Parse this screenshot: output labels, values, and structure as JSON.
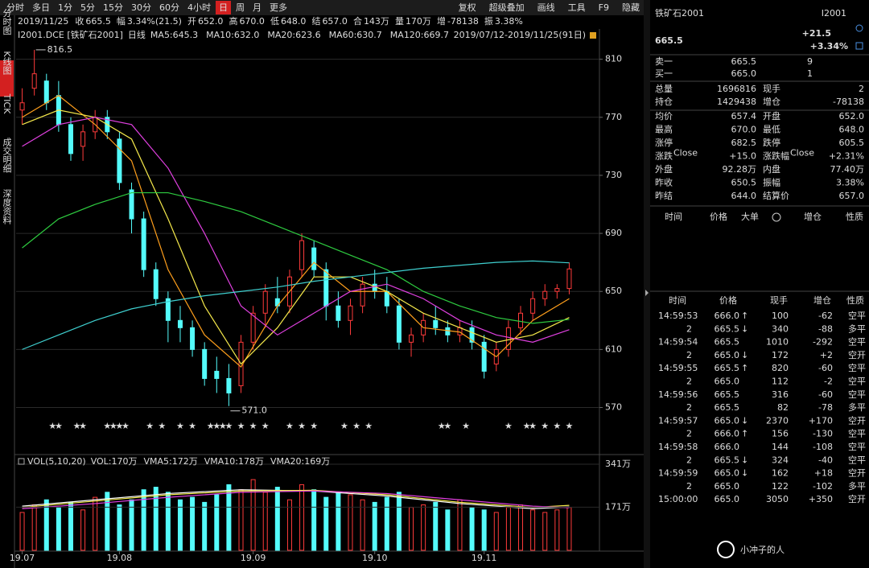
{
  "toolbar": {
    "tabs": [
      "分时",
      "多日",
      "1分",
      "5分",
      "15分",
      "30分",
      "60分",
      "4小时",
      "日",
      "周",
      "月",
      "更多"
    ],
    "active": 8,
    "right_tabs": [
      "复权",
      "超级叠加",
      "画线",
      "工具",
      "F9",
      "隐藏"
    ]
  },
  "sidebar": {
    "tabs": [
      "分时图",
      "K线图",
      "TICK",
      "成交明细",
      "深度资料"
    ],
    "active": 1
  },
  "info_bar": {
    "date": "2019/11/25",
    "items": [
      {
        "label": "收",
        "value": "665.5",
        "color": "#ff3b3b"
      },
      {
        "label": "幅",
        "value": "3.34%(21.5)",
        "color": "#ff3b3b"
      },
      {
        "label": "开",
        "value": "652.0",
        "color": "#ff3b3b"
      },
      {
        "label": "高",
        "value": "670.0",
        "color": "#ff3b3b"
      },
      {
        "label": "低",
        "value": "648.0",
        "color": "#ff3b3b"
      },
      {
        "label": "结",
        "value": "657.0",
        "color": "#ff3b3b"
      },
      {
        "label": "合",
        "value": "143万",
        "color": "#e0e0e0"
      },
      {
        "label": "量",
        "value": "170万",
        "color": "#e0e0e0"
      },
      {
        "label": "增",
        "value": "-78138",
        "color": "#2ecc40"
      },
      {
        "label": "振",
        "value": "3.38%",
        "color": "#e0e0e0"
      }
    ]
  },
  "kline_header": {
    "code": "I2001.DCE [铁矿石2001]",
    "period": "日线",
    "range": "2019/07/12-2019/11/25(91日)"
  },
  "chart_data": [
    {
      "type": "candlestick",
      "x": [
        0,
        2,
        4,
        6,
        8,
        10,
        12,
        14,
        16,
        18,
        20,
        22,
        24,
        26,
        28,
        30,
        32,
        34,
        36,
        38,
        40,
        42,
        44,
        46,
        48,
        50,
        52,
        54,
        56,
        58,
        60,
        62,
        64,
        66,
        68,
        70,
        72,
        74,
        76,
        78,
        80,
        82,
        84,
        86,
        88,
        90
      ],
      "open": [
        775,
        790,
        795,
        785,
        765,
        750,
        760,
        770,
        755,
        720,
        700,
        665,
        645,
        630,
        625,
        610,
        595,
        590,
        585,
        615,
        635,
        645,
        640,
        665,
        680,
        665,
        640,
        630,
        640,
        655,
        650,
        640,
        615,
        620,
        630,
        625,
        620,
        625,
        615,
        600,
        610,
        625,
        635,
        645,
        650,
        652
      ],
      "high": [
        790,
        816.5,
        800,
        795,
        770,
        765,
        775,
        775,
        760,
        725,
        705,
        670,
        650,
        640,
        630,
        615,
        605,
        600,
        620,
        640,
        655,
        660,
        665,
        690,
        685,
        670,
        650,
        645,
        660,
        665,
        660,
        645,
        625,
        635,
        640,
        630,
        630,
        630,
        620,
        615,
        630,
        640,
        650,
        655,
        655,
        670
      ],
      "low": [
        765,
        785,
        775,
        760,
        740,
        740,
        755,
        755,
        720,
        690,
        660,
        640,
        615,
        615,
        605,
        585,
        580,
        571,
        580,
        610,
        625,
        635,
        635,
        660,
        660,
        630,
        625,
        620,
        635,
        645,
        635,
        610,
        605,
        615,
        620,
        615,
        615,
        610,
        590,
        595,
        605,
        620,
        630,
        640,
        645,
        648
      ],
      "close": [
        780,
        800,
        780,
        765,
        745,
        760,
        770,
        760,
        725,
        700,
        665,
        645,
        630,
        625,
        610,
        590,
        590,
        580,
        615,
        635,
        650,
        640,
        660,
        685,
        665,
        640,
        630,
        640,
        655,
        650,
        640,
        615,
        620,
        630,
        625,
        620,
        625,
        615,
        595,
        610,
        625,
        635,
        645,
        650,
        652,
        665.5
      ],
      "up_color": "#ff3b3b",
      "down_color": "#54fcfc",
      "xlim": [
        -1,
        91
      ],
      "ylim": [
        547,
        822
      ],
      "yticks": [
        570,
        610,
        650,
        690,
        730,
        770,
        810
      ],
      "xticks": [
        {
          "value": 0,
          "label": "19.07"
        },
        {
          "value": 16,
          "label": "19.08"
        },
        {
          "value": 38,
          "label": "19.09"
        },
        {
          "value": 58,
          "label": "19.10"
        },
        {
          "value": 76,
          "label": "19.11"
        }
      ],
      "annotations": [
        {
          "x": 2,
          "value": 816.5,
          "label": "816.5"
        },
        {
          "x": 34,
          "value": 571,
          "label": "571.0"
        }
      ],
      "series": [
        {
          "name": "MA5:645.3",
          "color": "#ff9f1c",
          "x": [
            0,
            6,
            12,
            18,
            24,
            30,
            36,
            42,
            48,
            54,
            60,
            66,
            72,
            78,
            84,
            90
          ],
          "values": [
            770,
            785,
            765,
            740,
            665,
            620,
            598,
            640,
            670,
            650,
            650,
            625,
            622,
            605,
            630,
            645
          ]
        },
        {
          "name": "MA10:632.0",
          "color": "#f5e94b",
          "x": [
            0,
            6,
            12,
            18,
            24,
            30,
            36,
            42,
            48,
            54,
            60,
            66,
            72,
            78,
            84,
            90
          ],
          "values": [
            765,
            775,
            770,
            755,
            700,
            640,
            600,
            625,
            660,
            660,
            650,
            635,
            625,
            615,
            620,
            632
          ]
        },
        {
          "name": "MA20:623.6",
          "color": "#e040e0",
          "x": [
            0,
            6,
            12,
            18,
            24,
            30,
            36,
            42,
            48,
            54,
            60,
            66,
            72,
            78,
            84,
            90
          ],
          "values": [
            750,
            765,
            770,
            765,
            735,
            690,
            640,
            620,
            635,
            650,
            655,
            645,
            630,
            620,
            615,
            623.6
          ]
        },
        {
          "name": "MA60:630.7",
          "color": "#2ecc40",
          "x": [
            0,
            6,
            12,
            18,
            24,
            30,
            36,
            42,
            48,
            54,
            60,
            66,
            72,
            78,
            84,
            90
          ],
          "values": [
            680,
            700,
            710,
            718,
            718,
            712,
            705,
            695,
            685,
            675,
            665,
            650,
            640,
            632,
            628,
            630.7
          ]
        },
        {
          "name": "MA120:669.7",
          "color": "#3fd0d0",
          "x": [
            0,
            6,
            12,
            18,
            24,
            30,
            36,
            42,
            48,
            54,
            60,
            66,
            72,
            78,
            84,
            90
          ],
          "values": [
            610,
            620,
            630,
            638,
            643,
            647,
            650,
            653,
            657,
            660,
            663,
            666,
            668,
            670,
            671,
            669.7
          ]
        }
      ]
    },
    {
      "type": "volume",
      "title": "VOL(5,10,20)",
      "label": "VOL:170万",
      "x": [
        0,
        2,
        4,
        6,
        8,
        10,
        12,
        14,
        16,
        18,
        20,
        22,
        24,
        26,
        28,
        30,
        32,
        34,
        36,
        38,
        40,
        42,
        44,
        46,
        48,
        50,
        52,
        54,
        56,
        58,
        60,
        62,
        64,
        66,
        68,
        70,
        72,
        74,
        76,
        78,
        80,
        82,
        84,
        86,
        88,
        90
      ],
      "values": [
        150,
        180,
        200,
        170,
        190,
        160,
        210,
        230,
        180,
        200,
        240,
        250,
        230,
        200,
        210,
        190,
        220,
        260,
        240,
        280,
        230,
        250,
        200,
        260,
        240,
        210,
        230,
        220,
        200,
        190,
        210,
        230,
        170,
        180,
        190,
        160,
        200,
        170,
        160,
        150,
        170,
        180,
        160,
        150,
        160,
        170
      ],
      "xlim": [
        -1,
        91
      ],
      "ylim": [
        0,
        357
      ],
      "yticks": [
        {
          "value": 341,
          "label": "341万"
        },
        {
          "value": 171,
          "label": "171万"
        }
      ],
      "series": [
        {
          "name": "VMA5:172万",
          "color": "#ffffff",
          "x": [
            0,
            12,
            24,
            36,
            48,
            60,
            72,
            84,
            90
          ],
          "values": [
            175,
            200,
            225,
            240,
            235,
            215,
            185,
            165,
            172
          ]
        },
        {
          "name": "VMA10:178万",
          "color": "#f5e94b",
          "x": [
            0,
            12,
            24,
            36,
            48,
            60,
            72,
            84,
            90
          ],
          "values": [
            170,
            195,
            220,
            235,
            238,
            220,
            190,
            170,
            178
          ]
        },
        {
          "name": "VMA20:169万",
          "color": "#e040e0",
          "x": [
            0,
            12,
            24,
            36,
            48,
            60,
            72,
            84,
            90
          ],
          "values": [
            165,
            185,
            210,
            230,
            235,
            225,
            200,
            175,
            169
          ]
        }
      ]
    }
  ],
  "quote": {
    "name": "铁矿石2001",
    "code": "I2001",
    "price": "665.5",
    "change": "+21.5",
    "change_pct": "+3.34%",
    "book": [
      {
        "label": "卖一",
        "price": "665.5",
        "volume": "9"
      },
      {
        "label": "买一",
        "price": "665.0",
        "volume": "1"
      }
    ],
    "stats": [
      [
        {
          "label": "总量",
          "value": "1696816",
          "color": "#e0e0e0"
        },
        {
          "label": "现手",
          "value": "2",
          "color": "#e0e0e0"
        }
      ],
      [
        {
          "label": "持仓",
          "value": "1429438",
          "color": "#e0e0e0"
        },
        {
          "label": "增仓",
          "value": "-78138",
          "color": "#2ecc40"
        }
      ],
      [
        {
          "label": "均价",
          "value": "657.4",
          "color": "#ff3b3b"
        },
        {
          "label": "开盘",
          "value": "652.0",
          "color": "#ff3b3b"
        }
      ],
      [
        {
          "label": "最高",
          "value": "670.0",
          "color": "#ff3b3b"
        },
        {
          "label": "最低",
          "value": "648.0",
          "color": "#ff3b3b"
        }
      ],
      [
        {
          "label": "涨停",
          "value": "682.5",
          "color": "#ff3b3b"
        },
        {
          "label": "跌停",
          "value": "605.5",
          "color": "#2ecc40"
        }
      ],
      [
        {
          "label": "涨跌",
          "sup": "Close",
          "value": "+15.0",
          "color": "#ff3b3b"
        },
        {
          "label": "涨跌幅",
          "sup": "Close",
          "value": "+2.31%",
          "color": "#ff3b3b"
        }
      ],
      [
        {
          "label": "外盘",
          "value": "92.28万",
          "color": "#ff3b3b"
        },
        {
          "label": "内盘",
          "value": "77.40万",
          "color": "#2ecc40"
        }
      ],
      [
        {
          "label": "昨收",
          "value": "650.5",
          "color": "#e0e0e0"
        },
        {
          "label": "振幅",
          "value": "3.38%",
          "color": "#e0e0e0"
        }
      ],
      [
        {
          "label": "昨结",
          "value": "644.0",
          "color": "#e0e0e0"
        },
        {
          "label": "结算价",
          "value": "657.0",
          "color": "#e0e0e0"
        }
      ]
    ]
  },
  "tabs": [
    "时间",
    "价格",
    "大单",
    "增仓",
    "性质"
  ],
  "trades": {
    "headers": [
      "时间",
      "价格",
      "现手",
      "增仓",
      "性质"
    ],
    "rows": [
      {
        "time": "14:59:53",
        "price": "666.0",
        "arrow": "↑",
        "volume": "100",
        "change": "-62",
        "type": "空平",
        "vcolor": "#ff3b3b",
        "tcolor": "#ff3b3b"
      },
      {
        "time": "2",
        "price": "665.5",
        "arrow": "↓",
        "volume": "340",
        "change": "-88",
        "type": "多平",
        "vcolor": "#2ecc40",
        "tcolor": "#2ecc40"
      },
      {
        "time": "14:59:54",
        "price": "665.5",
        "volume": "1010",
        "change": "-292",
        "type": "空平",
        "vcolor": "#ff3b3b",
        "tcolor": "#ff3b3b"
      },
      {
        "time": "2",
        "price": "665.0",
        "arrow": "↓",
        "volume": "172",
        "change": "+2",
        "type": "空开",
        "vcolor": "#2ecc40",
        "tcolor": "#2ecc40"
      },
      {
        "time": "14:59:55",
        "price": "665.5",
        "arrow": "↑",
        "volume": "820",
        "change": "-60",
        "type": "空平",
        "vcolor": "#ff3b3b",
        "tcolor": "#ff3b3b"
      },
      {
        "time": "2",
        "price": "665.0",
        "volume": "112",
        "change": "-2",
        "type": "空平",
        "vcolor": "#ff3b3b",
        "tcolor": "#ff3b3b"
      },
      {
        "time": "14:59:56",
        "price": "665.5",
        "volume": "316",
        "change": "-60",
        "type": "空平",
        "vcolor": "#ff3b3b",
        "tcolor": "#ff3b3b"
      },
      {
        "time": "2",
        "price": "665.5",
        "volume": "82",
        "change": "-78",
        "type": "多平",
        "vcolor": "#2ecc40",
        "tcolor": "#2ecc40"
      },
      {
        "time": "14:59:57",
        "price": "665.0",
        "arrow": "↓",
        "volume": "2370",
        "change": "+170",
        "type": "空开",
        "vcolor": "#2ecc40",
        "tcolor": "#2ecc40"
      },
      {
        "time": "2",
        "price": "666.0",
        "arrow": "↑",
        "volume": "156",
        "change": "-130",
        "type": "空平",
        "vcolor": "#ff3b3b",
        "tcolor": "#ff3b3b"
      },
      {
        "time": "14:59:58",
        "price": "666.0",
        "volume": "144",
        "change": "-108",
        "type": "空平",
        "vcolor": "#ff3b3b",
        "tcolor": "#ff3b3b"
      },
      {
        "time": "2",
        "price": "665.5",
        "arrow": "↓",
        "volume": "324",
        "change": "-40",
        "type": "空平",
        "vcolor": "#ff3b3b",
        "tcolor": "#ff3b3b"
      },
      {
        "time": "14:59:59",
        "price": "665.0",
        "arrow": "↓",
        "volume": "162",
        "change": "+18",
        "type": "空开",
        "vcolor": "#2ecc40",
        "tcolor": "#2ecc40"
      },
      {
        "time": "2",
        "price": "665.0",
        "volume": "122",
        "change": "-102",
        "type": "多平",
        "vcolor": "#2ecc40",
        "tcolor": "#2ecc40"
      },
      {
        "time": "15:00:00",
        "price": "665.0",
        "volume": "3050",
        "change": "+350",
        "type": "空开",
        "vcolor": "#2ecc40",
        "tcolor": "#2ecc40"
      }
    ]
  },
  "watermark": "小冲子的人"
}
